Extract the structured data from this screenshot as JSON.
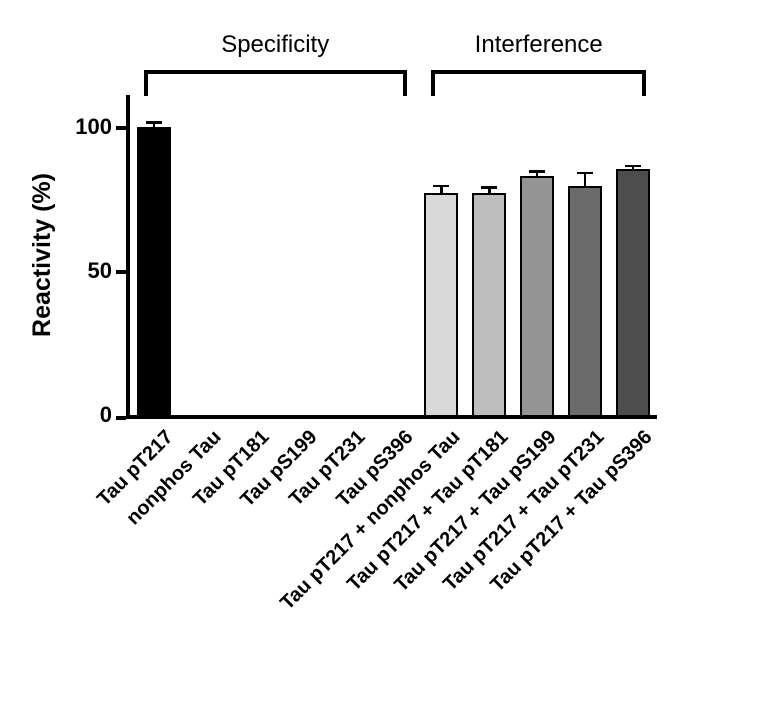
{
  "chart_data": {
    "type": "bar",
    "title": "",
    "ylabel": "Reactivity (%)",
    "xlabel": "",
    "ylim": [
      0,
      112
    ],
    "yticks": [
      0,
      50,
      100
    ],
    "grid": false,
    "legend": "none",
    "categories": [
      "Tau pT217",
      "nonphos Tau",
      "Tau pT181",
      "Tau pS199",
      "Tau pT231",
      "Tau pS396",
      "Tau pT217 + nonphos Tau",
      "Tau pT217 + Tau pT181",
      "Tau pT217 + Tau pS199",
      "Tau pT217 + Tau pT231",
      "Tau pT217 + Tau pS396"
    ],
    "values": [
      100,
      0,
      0,
      0,
      0,
      0,
      77,
      77,
      83,
      79.5,
      85.5
    ],
    "errors": [
      1.5,
      0,
      0,
      0,
      0,
      0,
      2.5,
      2,
      1.5,
      4.5,
      1
    ],
    "bar_colors": [
      "#000000",
      "",
      "",
      "",
      "",
      "",
      "#d9d9d9",
      "#bdbdbd",
      "#949494",
      "#6b6b6b",
      "#4d4d4d"
    ],
    "bar_edge_color": "#000000",
    "groups": [
      {
        "label": "Specificity",
        "start": 0,
        "end": 5
      },
      {
        "label": "Interference",
        "start": 6,
        "end": 10
      }
    ]
  }
}
